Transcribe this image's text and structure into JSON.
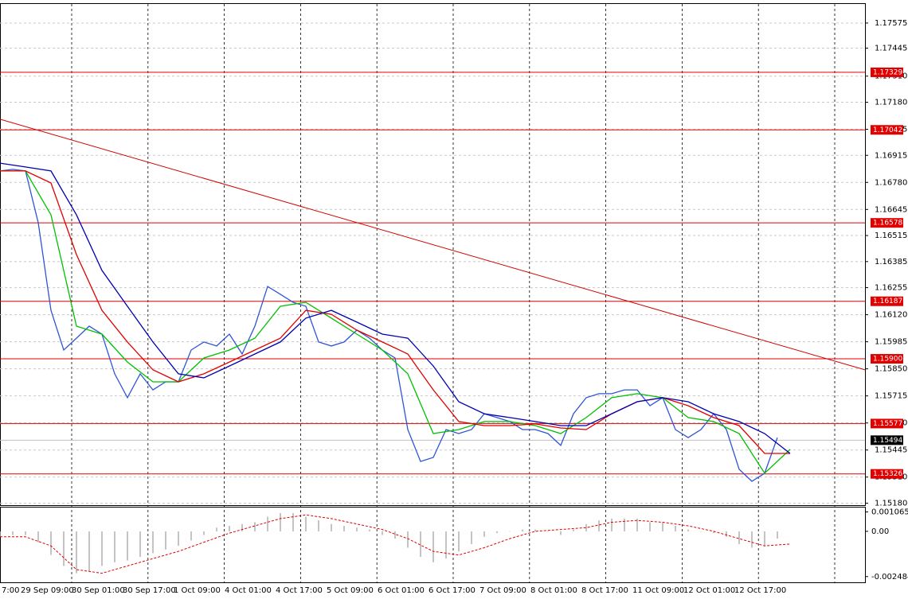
{
  "chart_data": [
    {
      "type": "line",
      "xlim": [
        0,
        271.5
      ],
      "ylim": [
        1.1517,
        1.1767
      ],
      "yticks": [
        1.17575,
        {
          "value": 1.1745,
          "label": "1.17445"
        },
        {
          "value": 1.1731,
          "label": "1.17310"
        },
        {
          "value": 1.1718,
          "label": "1.17180"
        },
        1.17045,
        1.16915,
        {
          "value": 1.1678,
          "label": "1.16780"
        },
        1.16645,
        1.16515,
        1.16385,
        1.16255,
        {
          "value": 1.1612,
          "label": "1.16120"
        },
        1.15985,
        {
          "value": 1.1585,
          "label": "1.15850"
        },
        1.15715,
        {
          "value": 1.1558,
          "label": "1.15580"
        },
        1.15445,
        {
          "value": 1.1531,
          "label": "1.15310"
        },
        {
          "value": 1.1518,
          "label": "1.15180"
        }
      ],
      "grid": true,
      "categories": [
        "7:00",
        "29 Sep 09:00",
        "30 Sep 01:00",
        "30 Sep 17:00",
        "1 Oct 09:00",
        "4 Oct 01:00",
        "4 Oct 17:00",
        "5 Oct 09:00",
        "6 Oct 01:00",
        "6 Oct 17:00",
        "7 Oct 09:00",
        "8 Oct 01:00",
        "8 Oct 17:00",
        "11 Oct 09:00",
        "12 Oct 01:00",
        "12 Oct 17:00"
      ],
      "levels": [
        1.17329,
        1.17042,
        1.16578,
        1.16187,
        {
          "value": 1.159,
          "label": "1.15900"
        },
        1.15577,
        1.15326
      ],
      "level_color": "#e00000",
      "last_price": 1.15494,
      "trendline": {
        "x": [
          0,
          271.5
        ],
        "values": [
          1.17095,
          1.15845
        ],
        "color": "#d00000"
      },
      "series": [
        {
          "color": "#2f55d4",
          "x": [
            0,
            4,
            8,
            12,
            16,
            20,
            24,
            28,
            32,
            36,
            40,
            44,
            48,
            52,
            56,
            60,
            64,
            68,
            72,
            76,
            80,
            84,
            88,
            92,
            96,
            100,
            104,
            108,
            112,
            116,
            120,
            124,
            128,
            132,
            136,
            140,
            144,
            148,
            152,
            156,
            160,
            164,
            168,
            172,
            176,
            180,
            184,
            188,
            192,
            196,
            200,
            204,
            208,
            212,
            216,
            220,
            224,
            228,
            232,
            236,
            240,
            244
          ],
          "values": [
            1.16837,
            1.16845,
            1.16837,
            1.16579,
            1.16142,
            1.15944,
            1.16003,
            1.16063,
            1.16023,
            1.15825,
            1.15706,
            1.15825,
            1.15745,
            1.15785,
            1.15785,
            1.15944,
            1.15984,
            1.15964,
            1.16023,
            1.15924,
            1.16063,
            1.16261,
            1.16222,
            1.16182,
            1.16162,
            1.15984,
            1.15964,
            1.15984,
            1.16043,
            1.16003,
            1.15944,
            1.15904,
            1.15547,
            1.15388,
            1.15408,
            1.15547,
            1.15527,
            1.15547,
            1.15626,
            1.15607,
            1.15587,
            1.15547,
            1.15547,
            1.15527,
            1.15468,
            1.15626,
            1.15706,
            1.15726,
            1.15726,
            1.15745,
            1.15745,
            1.15666,
            1.15706,
            1.15547,
            1.15507,
            1.15547,
            1.15626,
            1.15547,
            1.15349,
            1.15289,
            1.15329,
            1.15507
          ]
        },
        {
          "color": "#00c000",
          "x": [
            0,
            8,
            16,
            24,
            32,
            40,
            48,
            56,
            64,
            72,
            80,
            88,
            96,
            104,
            112,
            120,
            128,
            136,
            144,
            152,
            160,
            168,
            176,
            184,
            192,
            200,
            208,
            216,
            224,
            232,
            240,
            248
          ],
          "values": [
            1.16837,
            1.16837,
            1.16618,
            1.16063,
            1.16023,
            1.15884,
            1.15785,
            1.15785,
            1.15904,
            1.15944,
            1.16003,
            1.16162,
            1.16182,
            1.16103,
            1.16023,
            1.15944,
            1.15825,
            1.15527,
            1.15547,
            1.15587,
            1.15587,
            1.15567,
            1.15527,
            1.15607,
            1.15706,
            1.15726,
            1.15706,
            1.15607,
            1.15587,
            1.15527,
            1.15329,
            1.15448
          ]
        },
        {
          "color": "#e00000",
          "x": [
            0,
            8,
            16,
            24,
            32,
            40,
            48,
            56,
            64,
            72,
            80,
            88,
            96,
            104,
            112,
            120,
            128,
            136,
            144,
            152,
            160,
            168,
            176,
            184,
            192,
            200,
            208,
            216,
            224,
            232,
            240,
            248
          ],
          "values": [
            1.16837,
            1.16837,
            1.16777,
            1.1642,
            1.16142,
            1.15984,
            1.15845,
            1.15785,
            1.15825,
            1.15884,
            1.15944,
            1.16003,
            1.16142,
            1.16122,
            1.16043,
            1.15984,
            1.15924,
            1.15745,
            1.15587,
            1.15567,
            1.15567,
            1.15575,
            1.15555,
            1.15547,
            1.15626,
            1.15686,
            1.15706,
            1.15666,
            1.15607,
            1.15567,
            1.15428,
            1.15428
          ]
        },
        {
          "color": "#0000b0",
          "x": [
            0,
            8,
            16,
            24,
            32,
            40,
            48,
            56,
            64,
            72,
            80,
            88,
            96,
            104,
            112,
            120,
            128,
            136,
            144,
            152,
            160,
            168,
            176,
            184,
            192,
            200,
            208,
            216,
            224,
            232,
            240,
            248
          ],
          "values": [
            1.16876,
            1.16857,
            1.16837,
            1.16618,
            1.16341,
            1.16162,
            1.15984,
            1.15825,
            1.15805,
            1.15864,
            1.15924,
            1.15984,
            1.16103,
            1.16142,
            1.16083,
            1.16023,
            1.16003,
            1.15864,
            1.15686,
            1.15626,
            1.15607,
            1.15587,
            1.15567,
            1.15567,
            1.15626,
            1.15686,
            1.15706,
            1.15686,
            1.15626,
            1.15587,
            1.15527,
            1.15428
          ]
        }
      ]
    },
    {
      "type": "bar",
      "xlim": [
        0,
        271.5
      ],
      "ylim": [
        -0.0028,
        0.00135
      ],
      "yticks": [
        0.001065,
        {
          "value": 0,
          "label": "0.00"
        },
        -0.002484
      ],
      "color": "#b0b0b0",
      "x": [
        0,
        4,
        8,
        12,
        16,
        20,
        24,
        28,
        32,
        36,
        40,
        44,
        48,
        52,
        56,
        60,
        64,
        68,
        72,
        76,
        80,
        84,
        88,
        92,
        96,
        100,
        104,
        108,
        112,
        116,
        120,
        124,
        128,
        132,
        136,
        140,
        144,
        148,
        152,
        156,
        160,
        164,
        168,
        172,
        176,
        180,
        184,
        188,
        192,
        196,
        200,
        204,
        208,
        212,
        216,
        220,
        224,
        228,
        232,
        236,
        240,
        244
      ],
      "values": [
        -0.0003,
        -0.0002,
        -0.0002,
        -0.0006,
        -0.0013,
        -0.0019,
        -0.0023,
        -0.0022,
        -0.0019,
        -0.0017,
        -0.0016,
        -0.0014,
        -0.0012,
        -0.001,
        -0.0008,
        -0.0005,
        -0.0002,
        0.0002,
        0.0003,
        0.0004,
        0.0005,
        0.0008,
        0.001,
        0.001,
        0.0008,
        0.0006,
        0.0004,
        0.0003,
        0.0002,
        0.0001,
        -0.0002,
        -0.0004,
        -0.0009,
        -0.0014,
        -0.0017,
        -0.0015,
        -0.0011,
        -0.0007,
        -0.0003,
        -0.0001,
        0,
        0.0001,
        0.0001,
        0,
        -0.0002,
        0.0001,
        0.0004,
        0.0006,
        0.0007,
        0.0007,
        0.0007,
        0.0005,
        0.0005,
        0.0003,
        0.0001,
        0,
        -0.0001,
        -0.0003,
        -0.0007,
        -0.0009,
        -0.0008,
        -0.0004
      ],
      "signal": {
        "color": "#e00000",
        "x": [
          0,
          8,
          16,
          24,
          32,
          40,
          48,
          56,
          64,
          72,
          80,
          88,
          96,
          104,
          112,
          120,
          128,
          136,
          144,
          152,
          160,
          168,
          176,
          184,
          192,
          200,
          208,
          216,
          224,
          232,
          240,
          248
        ],
        "values": [
          -0.0003,
          -0.0003,
          -0.0008,
          -0.0021,
          -0.0023,
          -0.0019,
          -0.0015,
          -0.0011,
          -0.0006,
          -0.0001,
          0.0003,
          0.0007,
          0.0009,
          0.0007,
          0.0004,
          0.0001,
          -0.0004,
          -0.0011,
          -0.0013,
          -0.0009,
          -0.0004,
          0,
          0.0001,
          0.0002,
          0.0005,
          0.0006,
          0.0005,
          0.0003,
          0,
          -0.0004,
          -0.0008,
          -0.0007
        ]
      }
    }
  ]
}
